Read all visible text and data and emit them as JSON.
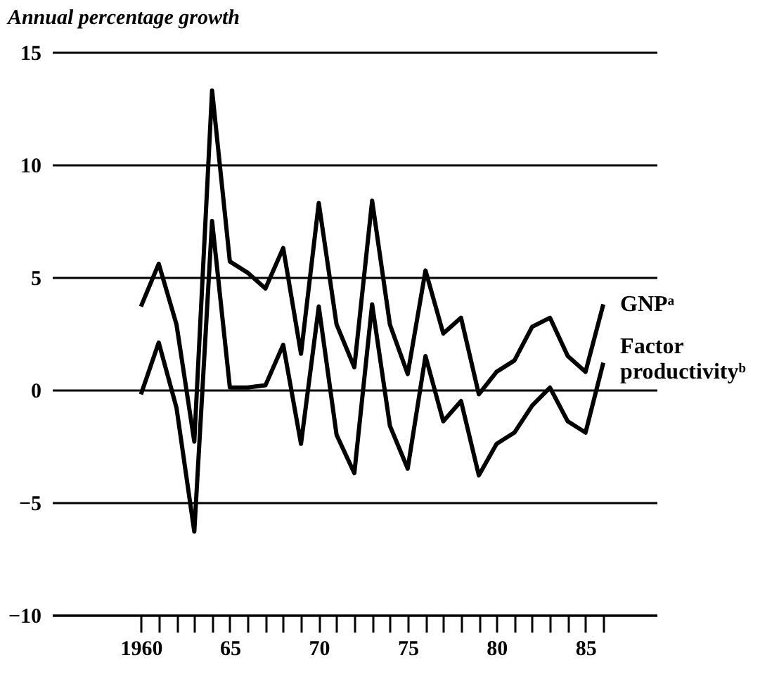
{
  "chart_data": {
    "type": "line",
    "title": "Annual percentage growth",
    "x": [
      1960,
      1961,
      1962,
      1963,
      1964,
      1965,
      1966,
      1967,
      1968,
      1969,
      1970,
      1971,
      1972,
      1973,
      1974,
      1975,
      1976,
      1977,
      1978,
      1979,
      1980,
      1981,
      1982,
      1983,
      1984,
      1985,
      1986
    ],
    "series": [
      {
        "name": "GNPᵃ",
        "color": "#000000",
        "values": [
          3.7,
          5.6,
          2.9,
          -2.3,
          13.3,
          5.7,
          5.2,
          4.5,
          6.3,
          1.6,
          8.3,
          2.9,
          1.0,
          8.4,
          2.9,
          0.7,
          5.3,
          2.5,
          3.2,
          -0.2,
          0.8,
          1.3,
          2.8,
          3.2,
          1.5,
          0.8,
          3.8
        ]
      },
      {
        "name": "Factor productivityᵇ",
        "color": "#000000",
        "values": [
          -0.2,
          2.1,
          -0.8,
          -6.3,
          7.5,
          0.1,
          0.1,
          0.2,
          2.0,
          -2.4,
          3.7,
          -2.0,
          -3.7,
          3.8,
          -1.6,
          -3.5,
          1.5,
          -1.4,
          -0.5,
          -3.8,
          -2.4,
          -1.9,
          -0.7,
          0.1,
          -1.4,
          -1.9,
          1.2
        ]
      }
    ],
    "xlim": [
      1955,
      1989
    ],
    "xticks": [
      {
        "value": 1960,
        "label": "1960"
      },
      {
        "value": 1961,
        "label": null
      },
      {
        "value": 1962,
        "label": null
      },
      {
        "value": 1963,
        "label": null
      },
      {
        "value": 1964,
        "label": null
      },
      {
        "value": 1965,
        "label": "65"
      },
      {
        "value": 1966,
        "label": null
      },
      {
        "value": 1967,
        "label": null
      },
      {
        "value": 1968,
        "label": null
      },
      {
        "value": 1969,
        "label": null
      },
      {
        "value": 1970,
        "label": "70"
      },
      {
        "value": 1971,
        "label": null
      },
      {
        "value": 1972,
        "label": null
      },
      {
        "value": 1973,
        "label": null
      },
      {
        "value": 1974,
        "label": null
      },
      {
        "value": 1975,
        "label": "75"
      },
      {
        "value": 1976,
        "label": null
      },
      {
        "value": 1977,
        "label": null
      },
      {
        "value": 1978,
        "label": null
      },
      {
        "value": 1979,
        "label": null
      },
      {
        "value": 1980,
        "label": "80"
      },
      {
        "value": 1981,
        "label": null
      },
      {
        "value": 1982,
        "label": null
      },
      {
        "value": 1983,
        "label": null
      },
      {
        "value": 1984,
        "label": null
      },
      {
        "value": 1985,
        "label": "85"
      },
      {
        "value": 1986,
        "label": null
      }
    ],
    "ylim": [
      -10,
      15
    ],
    "yticks": [
      {
        "value": -10,
        "label": "−10"
      },
      {
        "value": -5,
        "label": "−5"
      },
      0,
      5,
      10,
      15
    ],
    "grid": "y",
    "legend": false,
    "marker": "none",
    "line_style": "solid"
  }
}
